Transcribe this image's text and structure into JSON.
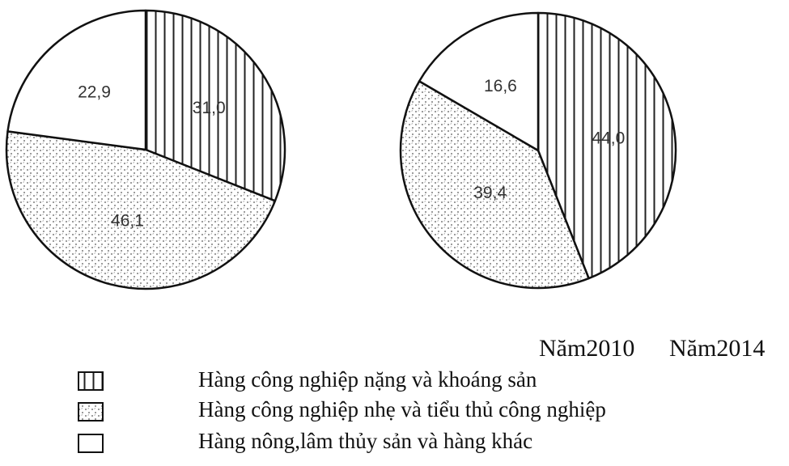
{
  "chart_data": [
    {
      "type": "pie",
      "year_label": "Năm2010",
      "slices": [
        {
          "category": "Hàng công nghiệp nặng và khoáng sản",
          "value": 31.0,
          "label": "31,0",
          "pattern": "vertical-lines"
        },
        {
          "category": "Hàng công nghiệp nhẹ và tiểu thủ công nghiệp",
          "value": 46.1,
          "label": "46,1",
          "pattern": "dots"
        },
        {
          "category": "Hàng nông,lâm thủy sản và hàng khác",
          "value": 22.9,
          "label": "22,9",
          "pattern": "none"
        }
      ]
    },
    {
      "type": "pie",
      "year_label": "Năm2014",
      "slices": [
        {
          "category": "Hàng công nghiệp nặng và khoáng sản",
          "value": 44.0,
          "label": "44,0",
          "pattern": "vertical-lines"
        },
        {
          "category": "Hàng công nghiệp nhẹ và tiểu thủ công nghiệp",
          "value": 39.4,
          "label": "39,4",
          "pattern": "dots"
        },
        {
          "category": "Hàng nông,lâm thủy sản và hàng khác",
          "value": 16.6,
          "label": "16,6",
          "pattern": "none"
        }
      ]
    }
  ],
  "legend": [
    {
      "label": "Hàng công nghiệp nặng và khoáng sản",
      "pattern": "vertical-lines"
    },
    {
      "label": "Hàng công nghiệp nhẹ và tiểu thủ công nghiệp",
      "pattern": "dots"
    },
    {
      "label": "Hàng nông,lâm thủy sản và hàng khác",
      "pattern": "none"
    }
  ]
}
